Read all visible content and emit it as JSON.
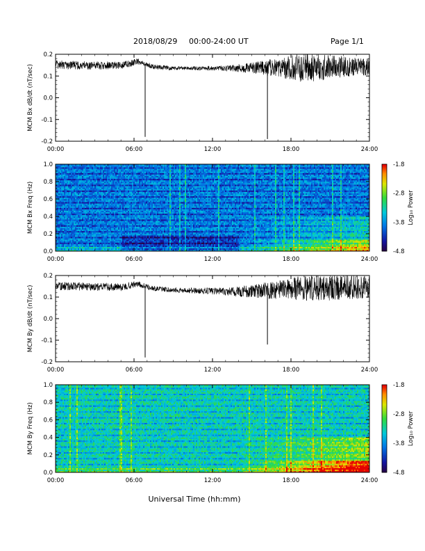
{
  "header": {
    "date": "2018/08/29",
    "range": "00:00-24:00 UT",
    "page": "Page 1/1"
  },
  "xlabel": "Universal Time (hh:mm)",
  "colors": {
    "trace": "#000000",
    "frame": "#000000"
  },
  "chart_data": [
    {
      "type": "line",
      "ylabel": "MCM Bx dB/dt (nT/sec)",
      "xlim": [
        0,
        24
      ],
      "ylim": [
        -0.2,
        0.2
      ],
      "yticks": [
        "-0.2",
        "-0.1",
        "0.0",
        "0.1",
        "0.2"
      ],
      "xticks": [
        "00:00",
        "06:00",
        "12:00",
        "18:00",
        "24:00"
      ],
      "baseline": [
        [
          0,
          0.152
        ],
        [
          3,
          0.148
        ],
        [
          5,
          0.15
        ],
        [
          5.8,
          0.158
        ],
        [
          6.2,
          0.168
        ],
        [
          6.6,
          0.16
        ],
        [
          7.5,
          0.142
        ],
        [
          9,
          0.136
        ],
        [
          12,
          0.135
        ],
        [
          14,
          0.136
        ],
        [
          16,
          0.138
        ],
        [
          18,
          0.14
        ],
        [
          20,
          0.142
        ],
        [
          22,
          0.143
        ],
        [
          24,
          0.142
        ]
      ],
      "noise_amplitude": [
        [
          0,
          0.02
        ],
        [
          5,
          0.018
        ],
        [
          7,
          0.012
        ],
        [
          10,
          0.008
        ],
        [
          13,
          0.012
        ],
        [
          15,
          0.025
        ],
        [
          17,
          0.045
        ],
        [
          19,
          0.07
        ],
        [
          21,
          0.06
        ],
        [
          23,
          0.04
        ],
        [
          24,
          0.04
        ]
      ],
      "spikes": [
        {
          "t": 6.85,
          "min": -0.18
        },
        {
          "t": 16.2,
          "min": -0.19
        }
      ]
    },
    {
      "type": "heatmap",
      "ylabel": "MCM Bx Freq (Hz)",
      "xlim": [
        0,
        24
      ],
      "ylim": [
        0,
        1.0
      ],
      "yticks": [
        "0.0",
        "0.2",
        "0.4",
        "0.6",
        "0.8",
        "1.0"
      ],
      "xticks": [
        "00:00",
        "06:00",
        "12:00",
        "18:00",
        "24:00"
      ],
      "colorbar": {
        "label": "Log₁₀ Power",
        "range": [
          -4.8,
          -1.8
        ],
        "ticks": [
          "-1.8",
          "-2.8",
          "-3.8",
          "-4.8"
        ]
      },
      "background_level": 0.32,
      "low_freq_activity": 0.12
    },
    {
      "type": "line",
      "ylabel": "MCM By dB/dt (nT/sec)",
      "xlim": [
        0,
        24
      ],
      "ylim": [
        -0.2,
        0.2
      ],
      "yticks": [
        "-0.2",
        "-0.1",
        "0.0",
        "0.1",
        "0.2"
      ],
      "xticks": [
        "00:00",
        "06:00",
        "12:00",
        "18:00",
        "24:00"
      ],
      "baseline": [
        [
          0,
          0.152
        ],
        [
          3,
          0.148
        ],
        [
          5,
          0.146
        ],
        [
          5.8,
          0.156
        ],
        [
          6.2,
          0.162
        ],
        [
          6.6,
          0.155
        ],
        [
          7.5,
          0.14
        ],
        [
          9,
          0.132
        ],
        [
          12,
          0.128
        ],
        [
          14,
          0.125
        ],
        [
          16,
          0.13
        ],
        [
          18,
          0.138
        ],
        [
          20,
          0.142
        ],
        [
          22,
          0.145
        ],
        [
          24,
          0.146
        ]
      ],
      "noise_amplitude": [
        [
          0,
          0.02
        ],
        [
          5,
          0.018
        ],
        [
          7,
          0.012
        ],
        [
          10,
          0.012
        ],
        [
          13,
          0.018
        ],
        [
          15,
          0.03
        ],
        [
          17,
          0.045
        ],
        [
          19,
          0.06
        ],
        [
          21,
          0.06
        ],
        [
          23,
          0.055
        ],
        [
          24,
          0.05
        ]
      ],
      "spikes": [
        {
          "t": 6.85,
          "min": -0.18
        },
        {
          "t": 16.2,
          "min": -0.12
        }
      ]
    },
    {
      "type": "heatmap",
      "ylabel": "MCM By Freq (Hz)",
      "xlim": [
        0,
        24
      ],
      "ylim": [
        0,
        1.0
      ],
      "yticks": [
        "0.0",
        "0.2",
        "0.4",
        "0.6",
        "0.8",
        "1.0"
      ],
      "xticks": [
        "00:00",
        "06:00",
        "12:00",
        "18:00",
        "24:00"
      ],
      "colorbar": {
        "label": "Log₁₀ Power",
        "range": [
          -4.8,
          -1.8
        ],
        "ticks": [
          "-1.8",
          "-2.8",
          "-3.8",
          "-4.8"
        ]
      },
      "background_level": 0.5,
      "low_freq_activity": 0.15
    }
  ]
}
